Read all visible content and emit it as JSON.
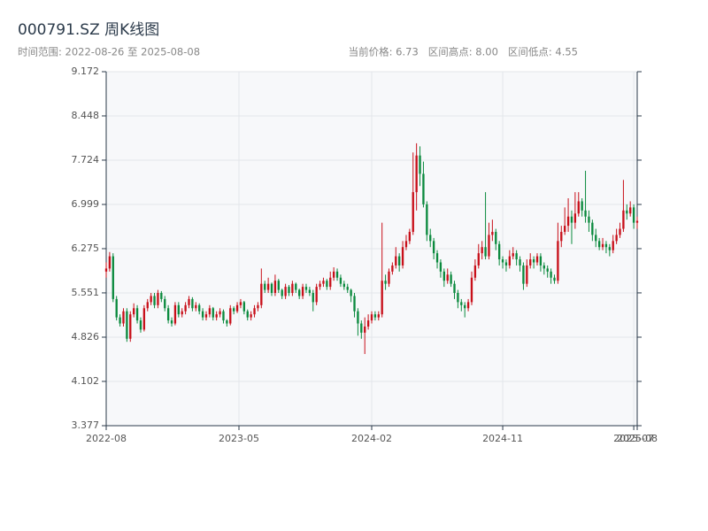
{
  "chart_data": {
    "type": "candlestick",
    "title": "000791.SZ 周K线图",
    "subtitle": "时间范围: 2022-08-26 至 2025-08-08",
    "summary": "当前价格: 6.73   区间高点: 8.00   区间低点: 4.55",
    "up_color": "#c8101a",
    "down_color": "#0b8a3e",
    "grid": true,
    "ylim": [
      3.377,
      9.172
    ],
    "yticks": [
      3.377,
      4.102,
      4.826,
      5.551,
      6.275,
      6.999,
      7.724,
      8.448,
      9.172
    ],
    "xlim": [
      0,
      154
    ],
    "xticks": [
      {
        "value": 0,
        "label": "2022-08"
      },
      {
        "value": 38.5,
        "label": "2023-05"
      },
      {
        "value": 77,
        "label": "2024-02"
      },
      {
        "value": 115,
        "label": "2024-11"
      },
      {
        "value": 153,
        "label": "2025-07"
      },
      {
        "value": 154,
        "label": "2025-08"
      }
    ],
    "candles": [
      [
        5.9,
        6.05,
        5.8,
        5.95
      ],
      [
        5.95,
        6.22,
        5.9,
        6.15
      ],
      [
        6.15,
        6.2,
        5.4,
        5.45
      ],
      [
        5.45,
        5.5,
        5.1,
        5.15
      ],
      [
        5.15,
        5.2,
        5.0,
        5.05
      ],
      [
        5.05,
        5.3,
        5.0,
        5.25
      ],
      [
        5.25,
        5.3,
        4.75,
        4.8
      ],
      [
        4.8,
        5.25,
        4.75,
        5.2
      ],
      [
        5.2,
        5.38,
        5.15,
        5.3
      ],
      [
        5.3,
        5.35,
        5.05,
        5.1
      ],
      [
        5.1,
        5.15,
        4.9,
        4.95
      ],
      [
        4.95,
        5.35,
        4.92,
        5.3
      ],
      [
        5.3,
        5.45,
        5.25,
        5.4
      ],
      [
        5.4,
        5.55,
        5.35,
        5.5
      ],
      [
        5.5,
        5.55,
        5.3,
        5.35
      ],
      [
        5.35,
        5.6,
        5.3,
        5.55
      ],
      [
        5.55,
        5.58,
        5.4,
        5.45
      ],
      [
        5.45,
        5.5,
        5.25,
        5.3
      ],
      [
        5.3,
        5.35,
        5.05,
        5.1
      ],
      [
        5.1,
        5.15,
        5.0,
        5.05
      ],
      [
        5.05,
        5.4,
        5.02,
        5.35
      ],
      [
        5.35,
        5.4,
        5.15,
        5.2
      ],
      [
        5.2,
        5.3,
        5.15,
        5.25
      ],
      [
        5.25,
        5.4,
        5.2,
        5.35
      ],
      [
        5.35,
        5.5,
        5.3,
        5.45
      ],
      [
        5.45,
        5.48,
        5.25,
        5.3
      ],
      [
        5.3,
        5.4,
        5.25,
        5.35
      ],
      [
        5.35,
        5.38,
        5.2,
        5.25
      ],
      [
        5.25,
        5.3,
        5.1,
        5.15
      ],
      [
        5.15,
        5.25,
        5.1,
        5.2
      ],
      [
        5.2,
        5.35,
        5.15,
        5.3
      ],
      [
        5.3,
        5.32,
        5.1,
        5.15
      ],
      [
        5.15,
        5.25,
        5.1,
        5.2
      ],
      [
        5.2,
        5.3,
        5.15,
        5.25
      ],
      [
        5.25,
        5.28,
        5.05,
        5.1
      ],
      [
        5.1,
        5.12,
        5.0,
        5.05
      ],
      [
        5.05,
        5.35,
        5.02,
        5.3
      ],
      [
        5.3,
        5.33,
        5.2,
        5.25
      ],
      [
        5.25,
        5.4,
        5.22,
        5.35
      ],
      [
        5.35,
        5.45,
        5.3,
        5.4
      ],
      [
        5.4,
        5.42,
        5.2,
        5.25
      ],
      [
        5.25,
        5.28,
        5.1,
        5.15
      ],
      [
        5.15,
        5.25,
        5.1,
        5.2
      ],
      [
        5.2,
        5.35,
        5.15,
        5.3
      ],
      [
        5.3,
        5.4,
        5.25,
        5.35
      ],
      [
        5.35,
        5.95,
        5.3,
        5.7
      ],
      [
        5.7,
        5.75,
        5.55,
        5.6
      ],
      [
        5.6,
        5.8,
        5.55,
        5.7
      ],
      [
        5.7,
        5.72,
        5.5,
        5.55
      ],
      [
        5.55,
        5.85,
        5.5,
        5.75
      ],
      [
        5.75,
        5.78,
        5.55,
        5.6
      ],
      [
        5.6,
        5.62,
        5.45,
        5.5
      ],
      [
        5.5,
        5.7,
        5.45,
        5.65
      ],
      [
        5.65,
        5.68,
        5.5,
        5.55
      ],
      [
        5.55,
        5.75,
        5.5,
        5.7
      ],
      [
        5.7,
        5.72,
        5.55,
        5.6
      ],
      [
        5.6,
        5.62,
        5.45,
        5.5
      ],
      [
        5.5,
        5.7,
        5.45,
        5.65
      ],
      [
        5.65,
        5.7,
        5.55,
        5.6
      ],
      [
        5.6,
        5.65,
        5.5,
        5.55
      ],
      [
        5.55,
        5.6,
        5.25,
        5.4
      ],
      [
        5.4,
        5.7,
        5.35,
        5.65
      ],
      [
        5.65,
        5.75,
        5.6,
        5.7
      ],
      [
        5.7,
        5.8,
        5.65,
        5.75
      ],
      [
        5.75,
        5.78,
        5.6,
        5.65
      ],
      [
        5.65,
        5.9,
        5.6,
        5.8
      ],
      [
        5.8,
        5.97,
        5.75,
        5.9
      ],
      [
        5.9,
        5.95,
        5.75,
        5.8
      ],
      [
        5.8,
        5.85,
        5.65,
        5.7
      ],
      [
        5.7,
        5.75,
        5.6,
        5.65
      ],
      [
        5.65,
        5.7,
        5.55,
        5.6
      ],
      [
        5.6,
        5.62,
        5.4,
        5.5
      ],
      [
        5.5,
        5.55,
        5.15,
        5.25
      ],
      [
        5.25,
        5.3,
        4.85,
        5.05
      ],
      [
        5.05,
        5.1,
        4.8,
        4.9
      ],
      [
        4.9,
        5.15,
        4.55,
        5.0
      ],
      [
        5.0,
        5.2,
        4.95,
        5.1
      ],
      [
        5.1,
        5.25,
        5.05,
        5.2
      ],
      [
        5.2,
        5.25,
        5.1,
        5.15
      ],
      [
        5.15,
        5.25,
        5.1,
        5.2
      ],
      [
        5.2,
        6.7,
        5.15,
        5.75
      ],
      [
        5.75,
        5.85,
        5.6,
        5.7
      ],
      [
        5.7,
        5.95,
        5.65,
        5.9
      ],
      [
        5.9,
        6.05,
        5.85,
        6.0
      ],
      [
        6.0,
        6.3,
        5.95,
        6.15
      ],
      [
        6.15,
        6.2,
        5.9,
        6.0
      ],
      [
        6.0,
        6.4,
        5.95,
        6.3
      ],
      [
        6.3,
        6.5,
        6.25,
        6.4
      ],
      [
        6.4,
        6.6,
        6.35,
        6.55
      ],
      [
        6.55,
        7.85,
        6.5,
        7.2
      ],
      [
        7.2,
        8.0,
        6.9,
        7.8
      ],
      [
        7.8,
        7.95,
        7.3,
        7.5
      ],
      [
        7.5,
        7.7,
        6.95,
        7.0
      ],
      [
        7.0,
        7.05,
        6.4,
        6.5
      ],
      [
        6.5,
        6.6,
        6.3,
        6.4
      ],
      [
        6.4,
        6.45,
        6.1,
        6.2
      ],
      [
        6.2,
        6.25,
        5.95,
        6.05
      ],
      [
        6.05,
        6.1,
        5.8,
        5.9
      ],
      [
        5.9,
        5.95,
        5.65,
        5.75
      ],
      [
        5.75,
        5.95,
        5.7,
        5.85
      ],
      [
        5.85,
        5.9,
        5.65,
        5.7
      ],
      [
        5.7,
        5.75,
        5.45,
        5.55
      ],
      [
        5.55,
        5.6,
        5.3,
        5.4
      ],
      [
        5.4,
        5.45,
        5.25,
        5.35
      ],
      [
        5.35,
        5.4,
        5.15,
        5.3
      ],
      [
        5.3,
        5.45,
        5.25,
        5.4
      ],
      [
        5.4,
        5.9,
        5.35,
        5.8
      ],
      [
        5.8,
        6.1,
        5.75,
        6.0
      ],
      [
        6.0,
        6.35,
        5.95,
        6.2
      ],
      [
        6.2,
        6.4,
        6.1,
        6.3
      ],
      [
        6.3,
        7.2,
        6.1,
        6.15
      ],
      [
        6.15,
        6.7,
        6.1,
        6.5
      ],
      [
        6.5,
        6.75,
        6.4,
        6.55
      ],
      [
        6.55,
        6.6,
        6.25,
        6.35
      ],
      [
        6.35,
        6.4,
        6.0,
        6.1
      ],
      [
        6.1,
        6.15,
        5.95,
        6.05
      ],
      [
        6.05,
        6.1,
        5.9,
        6.0
      ],
      [
        6.0,
        6.25,
        5.95,
        6.15
      ],
      [
        6.15,
        6.3,
        6.1,
        6.2
      ],
      [
        6.2,
        6.25,
        6.0,
        6.1
      ],
      [
        6.1,
        6.15,
        5.9,
        6.0
      ],
      [
        6.0,
        6.05,
        5.6,
        5.7
      ],
      [
        5.7,
        6.1,
        5.65,
        6.0
      ],
      [
        6.0,
        6.2,
        5.95,
        6.1
      ],
      [
        6.1,
        6.15,
        5.95,
        6.05
      ],
      [
        6.05,
        6.2,
        6.0,
        6.15
      ],
      [
        6.15,
        6.2,
        5.9,
        6.0
      ],
      [
        6.0,
        6.05,
        5.85,
        5.95
      ],
      [
        5.95,
        6.0,
        5.8,
        5.9
      ],
      [
        5.9,
        5.95,
        5.7,
        5.8
      ],
      [
        5.8,
        5.85,
        5.7,
        5.75
      ],
      [
        5.75,
        6.7,
        5.7,
        6.4
      ],
      [
        6.4,
        6.65,
        6.3,
        6.55
      ],
      [
        6.55,
        6.95,
        6.5,
        6.65
      ],
      [
        6.65,
        7.1,
        6.55,
        6.8
      ],
      [
        6.8,
        6.9,
        6.35,
        6.7
      ],
      [
        6.7,
        7.2,
        6.6,
        6.85
      ],
      [
        6.85,
        7.2,
        6.8,
        7.05
      ],
      [
        7.05,
        7.1,
        6.8,
        6.9
      ],
      [
        6.9,
        7.55,
        6.7,
        6.8
      ],
      [
        6.8,
        6.9,
        6.55,
        6.7
      ],
      [
        6.7,
        6.75,
        6.4,
        6.5
      ],
      [
        6.5,
        6.6,
        6.3,
        6.4
      ],
      [
        6.4,
        6.45,
        6.25,
        6.3
      ],
      [
        6.3,
        6.45,
        6.25,
        6.35
      ],
      [
        6.35,
        6.4,
        6.2,
        6.3
      ],
      [
        6.3,
        6.35,
        6.15,
        6.25
      ],
      [
        6.25,
        6.5,
        6.2,
        6.4
      ],
      [
        6.4,
        6.6,
        6.35,
        6.5
      ],
      [
        6.5,
        6.7,
        6.45,
        6.6
      ],
      [
        6.6,
        7.4,
        6.55,
        6.9
      ],
      [
        6.9,
        7.0,
        6.75,
        6.85
      ],
      [
        6.85,
        7.05,
        6.8,
        6.95
      ],
      [
        6.95,
        7.0,
        6.6,
        6.7
      ],
      [
        6.7,
        6.8,
        6.6,
        6.73
      ]
    ]
  }
}
